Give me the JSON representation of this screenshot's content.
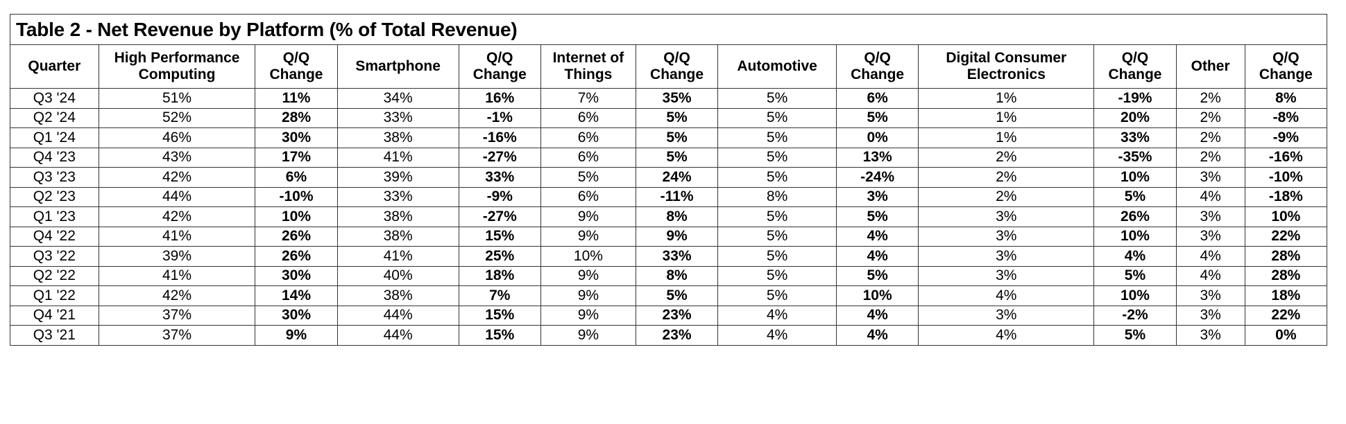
{
  "title": "Table 2 - Net Revenue by Platform (% of Total Revenue)",
  "columns": [
    {
      "lines": [
        "Quarter"
      ],
      "bold": false
    },
    {
      "lines": [
        "High Performance",
        "Computing"
      ],
      "bold": false
    },
    {
      "lines": [
        "Q/Q",
        "Change"
      ],
      "bold": true
    },
    {
      "lines": [
        "Smartphone"
      ],
      "bold": false
    },
    {
      "lines": [
        "Q/Q",
        "Change"
      ],
      "bold": true
    },
    {
      "lines": [
        "Internet of",
        "Things"
      ],
      "bold": false
    },
    {
      "lines": [
        "Q/Q",
        "Change"
      ],
      "bold": true
    },
    {
      "lines": [
        "Automotive"
      ],
      "bold": false
    },
    {
      "lines": [
        "Q/Q",
        "Change"
      ],
      "bold": true
    },
    {
      "lines": [
        "Digital Consumer",
        "Electronics"
      ],
      "bold": false
    },
    {
      "lines": [
        "Q/Q",
        "Change"
      ],
      "bold": true
    },
    {
      "lines": [
        "Other"
      ],
      "bold": false
    },
    {
      "lines": [
        "Q/Q",
        "Change"
      ],
      "bold": true
    }
  ],
  "rows": [
    [
      "Q3 '24",
      "51%",
      "11%",
      "34%",
      "16%",
      "7%",
      "35%",
      "5%",
      "6%",
      "1%",
      "-19%",
      "2%",
      "8%"
    ],
    [
      "Q2 '24",
      "52%",
      "28%",
      "33%",
      "-1%",
      "6%",
      "5%",
      "5%",
      "5%",
      "1%",
      "20%",
      "2%",
      "-8%"
    ],
    [
      "Q1 '24",
      "46%",
      "30%",
      "38%",
      "-16%",
      "6%",
      "5%",
      "5%",
      "0%",
      "1%",
      "33%",
      "2%",
      "-9%"
    ],
    [
      "Q4 '23",
      "43%",
      "17%",
      "41%",
      "-27%",
      "6%",
      "5%",
      "5%",
      "13%",
      "2%",
      "-35%",
      "2%",
      "-16%"
    ],
    [
      "Q3 '23",
      "42%",
      "6%",
      "39%",
      "33%",
      "5%",
      "24%",
      "5%",
      "-24%",
      "2%",
      "10%",
      "3%",
      "-10%"
    ],
    [
      "Q2 '23",
      "44%",
      "-10%",
      "33%",
      "-9%",
      "6%",
      "-11%",
      "8%",
      "3%",
      "2%",
      "5%",
      "4%",
      "-18%"
    ],
    [
      "Q1 '23",
      "42%",
      "10%",
      "38%",
      "-27%",
      "9%",
      "8%",
      "5%",
      "5%",
      "3%",
      "26%",
      "3%",
      "10%"
    ],
    [
      "Q4 '22",
      "41%",
      "26%",
      "38%",
      "15%",
      "9%",
      "9%",
      "5%",
      "4%",
      "3%",
      "10%",
      "3%",
      "22%"
    ],
    [
      "Q3 '22",
      "39%",
      "26%",
      "41%",
      "25%",
      "10%",
      "33%",
      "5%",
      "4%",
      "3%",
      "4%",
      "4%",
      "28%"
    ],
    [
      "Q2 '22",
      "41%",
      "30%",
      "40%",
      "18%",
      "9%",
      "8%",
      "5%",
      "5%",
      "3%",
      "5%",
      "4%",
      "28%"
    ],
    [
      "Q1 '22",
      "42%",
      "14%",
      "38%",
      "7%",
      "9%",
      "5%",
      "5%",
      "10%",
      "4%",
      "10%",
      "3%",
      "18%"
    ],
    [
      "Q4 '21",
      "37%",
      "30%",
      "44%",
      "15%",
      "9%",
      "23%",
      "4%",
      "4%",
      "3%",
      "-2%",
      "3%",
      "22%"
    ],
    [
      "Q3 '21",
      "37%",
      "9%",
      "44%",
      "15%",
      "9%",
      "23%",
      "4%",
      "4%",
      "4%",
      "5%",
      "3%",
      "0%"
    ]
  ]
}
